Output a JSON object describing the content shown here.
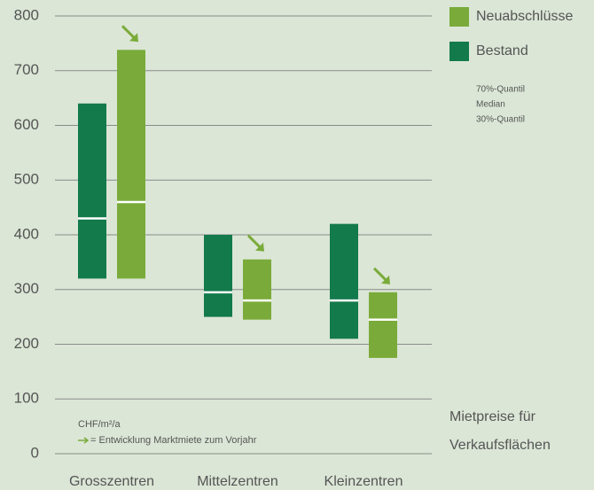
{
  "chart_data": {
    "type": "range_bar",
    "categories": [
      "Grosszentren",
      "Mittelzentren",
      "Kleinzentren"
    ],
    "series": [
      {
        "name": "Neuabschlüsse",
        "color": "#7aab3a",
        "low": [
          320,
          245,
          175
        ],
        "median": [
          460,
          280,
          245
        ],
        "high": [
          738,
          355,
          295
        ]
      },
      {
        "name": "Bestand",
        "color": "#137a4b",
        "low": [
          320,
          250,
          210
        ],
        "median": [
          430,
          295,
          280
        ],
        "high": [
          640,
          400,
          420
        ]
      }
    ],
    "ylim": [
      0,
      800
    ],
    "yticks": [
      0,
      100,
      200,
      300,
      400,
      500,
      600,
      700,
      800
    ],
    "grid": true,
    "quantile_labels": [
      "70%-Quantil",
      "Median",
      "30%-Quantil"
    ],
    "unit": "CHF/m²/a",
    "arrow_note": "= Entwicklung Marktmiete zum Vorjahr",
    "caption": [
      "Mietpreise für",
      "Verkaufsflächen"
    ]
  }
}
